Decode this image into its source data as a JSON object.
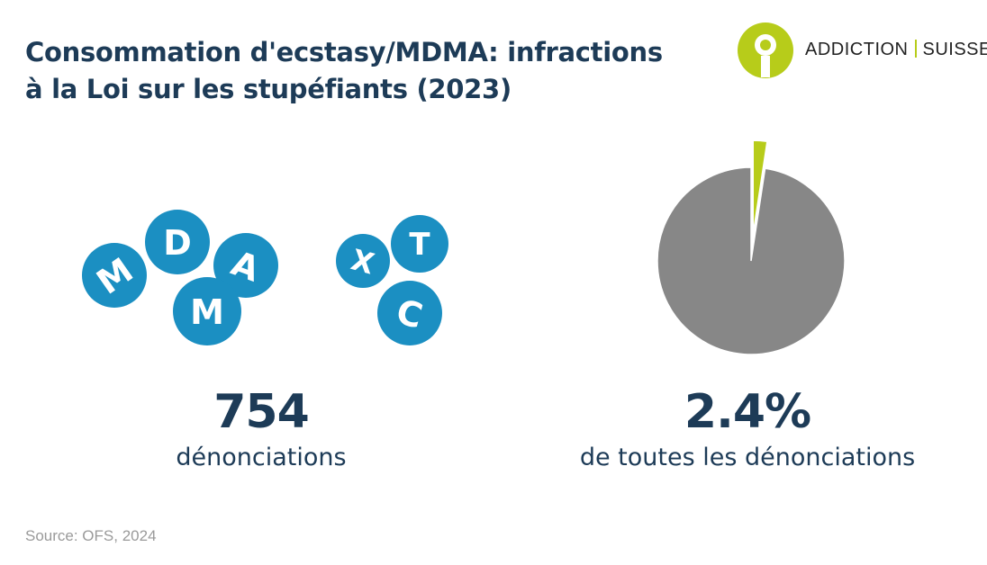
{
  "header": {
    "title_line1": "Consommation d'ecstasy/MDMA: infractions",
    "title_line2": "à la Loi sur les stupéfiants (2023)"
  },
  "logo": {
    "left": "ADDICTION",
    "right": "SUISSE",
    "color": "#b7cc1a"
  },
  "pills": {
    "letters": [
      "M",
      "D",
      "A",
      "M",
      "X",
      "T",
      "C"
    ],
    "color": "#1b8fc2"
  },
  "stats": {
    "count_value": "754",
    "count_label": "dénonciations",
    "share_value": "2.4%",
    "share_label": "de toutes les dénonciations"
  },
  "source": "Source: OFS, 2024",
  "chart_data": {
    "type": "pie",
    "title": "",
    "slices": [
      {
        "value": 2.4,
        "color": "#b7cc1a"
      },
      {
        "value": 97.6,
        "color": "#878787"
      }
    ]
  }
}
